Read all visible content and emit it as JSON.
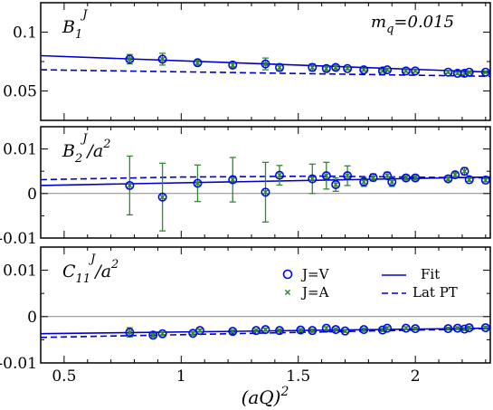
{
  "chart_data": {
    "type": "scatter",
    "xlabel": "(aQ)",
    "xlabel_sup": "2",
    "xlim": [
      0.4,
      2.32
    ],
    "x_ticks": [
      "0.5",
      "1",
      "1.5",
      "2"
    ],
    "x_tick_values": [
      0.5,
      1,
      1.5,
      2
    ],
    "colors": {
      "jv": "#0000ff",
      "ja": "#2e8b2e",
      "fit": "#0000cc",
      "zero": "#888888"
    },
    "legend": {
      "placement": "center-right of bottom panel",
      "entries": [
        {
          "label": "J=V",
          "marker": "circle"
        },
        {
          "label": "J=A",
          "marker": "x"
        },
        {
          "label": "Fit",
          "line": "solid"
        },
        {
          "label": "Lat PT",
          "line": "dashed"
        }
      ]
    },
    "panels": [
      {
        "id": "B1",
        "label": "B",
        "label_sub": "1",
        "label_sup": "J",
        "label_suffix": "",
        "annotation": "m",
        "annotation_sub": "q",
        "annotation_suffix": "=0.015",
        "ylim": [
          0.025,
          0.125
        ],
        "y_ticks": [
          "0.05",
          "0.1"
        ],
        "y_tick_values": [
          0.05,
          0.1
        ],
        "zero_line": false,
        "fit": [
          [
            0.4,
            0.08
          ],
          [
            2.32,
            0.066
          ]
        ],
        "latpt": [
          [
            0.4,
            0.068
          ],
          [
            2.32,
            0.0625
          ]
        ],
        "points": [
          {
            "x": 0.78,
            "y": 0.077,
            "err": 0.004
          },
          {
            "x": 0.92,
            "y": 0.077,
            "err": 0.005
          },
          {
            "x": 1.07,
            "y": 0.074,
            "err": 0.002
          },
          {
            "x": 1.22,
            "y": 0.072,
            "err": 0.002
          },
          {
            "x": 1.36,
            "y": 0.073,
            "err": 0.005
          },
          {
            "x": 1.42,
            "y": 0.07,
            "err": 0.003
          },
          {
            "x": 1.56,
            "y": 0.07,
            "err": 0.003
          },
          {
            "x": 1.62,
            "y": 0.069,
            "err": 0.002
          },
          {
            "x": 1.66,
            "y": 0.07,
            "err": 0.002
          },
          {
            "x": 1.71,
            "y": 0.069,
            "err": 0.001
          },
          {
            "x": 1.78,
            "y": 0.068,
            "err": 0.001
          },
          {
            "x": 1.86,
            "y": 0.067,
            "err": 0.001
          },
          {
            "x": 1.88,
            "y": 0.068,
            "err": 0.001
          },
          {
            "x": 1.96,
            "y": 0.067,
            "err": 0.001
          },
          {
            "x": 2.0,
            "y": 0.067,
            "err": 0.001
          },
          {
            "x": 2.14,
            "y": 0.066,
            "err": 0.001
          },
          {
            "x": 2.18,
            "y": 0.065,
            "err": 0.001
          },
          {
            "x": 2.21,
            "y": 0.065,
            "err": 0.001
          },
          {
            "x": 2.23,
            "y": 0.066,
            "err": 0.001
          },
          {
            "x": 2.3,
            "y": 0.066,
            "err": 0.001
          }
        ]
      },
      {
        "id": "B2",
        "label": "B",
        "label_sub": "2",
        "label_sup": "J",
        "label_suffix": "/a",
        "label_suffix_sup": "2",
        "ylim": [
          -0.01,
          0.015
        ],
        "y_ticks": [
          "-0.01",
          "0",
          "0.01"
        ],
        "y_tick_values": [
          -0.01,
          0,
          0.01
        ],
        "zero_line": true,
        "fit": [
          [
            0.4,
            0.0018
          ],
          [
            2.32,
            0.0037
          ]
        ],
        "latpt": [
          [
            0.4,
            0.0031
          ],
          [
            1.0,
            0.0037
          ],
          [
            1.6,
            0.0039
          ],
          [
            2.32,
            0.0035
          ]
        ],
        "points": [
          {
            "x": 0.78,
            "y": 0.0018,
            "err": 0.0066
          },
          {
            "x": 0.92,
            "y": -0.0008,
            "err": 0.0076
          },
          {
            "x": 1.07,
            "y": 0.0023,
            "err": 0.0041
          },
          {
            "x": 1.22,
            "y": 0.0031,
            "err": 0.005
          },
          {
            "x": 1.36,
            "y": 0.0003,
            "err": 0.0067
          },
          {
            "x": 1.42,
            "y": 0.0041,
            "err": 0.0022
          },
          {
            "x": 1.56,
            "y": 0.0033,
            "err": 0.0033
          },
          {
            "x": 1.62,
            "y": 0.004,
            "err": 0.003
          },
          {
            "x": 1.66,
            "y": 0.002,
            "err": 0.0015
          },
          {
            "x": 1.71,
            "y": 0.004,
            "err": 0.0022
          },
          {
            "x": 1.78,
            "y": 0.0026,
            "err": 0.001
          },
          {
            "x": 1.82,
            "y": 0.0036,
            "err": 0.0008
          },
          {
            "x": 1.88,
            "y": 0.004,
            "err": 0.0008
          },
          {
            "x": 1.9,
            "y": 0.0026,
            "err": 0.001
          },
          {
            "x": 1.96,
            "y": 0.0035,
            "err": 0.0005
          },
          {
            "x": 2.0,
            "y": 0.0035,
            "err": 0.0005
          },
          {
            "x": 2.14,
            "y": 0.0033,
            "err": 0.0005
          },
          {
            "x": 2.17,
            "y": 0.0042,
            "err": 0.0006
          },
          {
            "x": 2.21,
            "y": 0.005,
            "err": 0.0008
          },
          {
            "x": 2.23,
            "y": 0.0031,
            "err": 0.0004
          },
          {
            "x": 2.3,
            "y": 0.003,
            "err": 0.0004
          }
        ]
      },
      {
        "id": "C11",
        "label": "C",
        "label_sub": "11",
        "label_sup": "J",
        "label_suffix": "/a",
        "label_suffix_sup": "2",
        "ylim": [
          -0.01,
          0.015
        ],
        "y_ticks": [
          "-0.01",
          "0",
          "0.01"
        ],
        "y_tick_values": [
          -0.01,
          0,
          0.01
        ],
        "zero_line": true,
        "fit": [
          [
            0.4,
            -0.0037
          ],
          [
            2.32,
            -0.0025
          ]
        ],
        "latpt": [
          [
            0.4,
            -0.0045
          ],
          [
            2.32,
            -0.0026
          ]
        ],
        "points": [
          {
            "x": 0.78,
            "y": -0.0034,
            "err": 0.001
          },
          {
            "x": 0.88,
            "y": -0.004,
            "err": 0.0004
          },
          {
            "x": 0.92,
            "y": -0.0037,
            "err": 0.0004
          },
          {
            "x": 1.05,
            "y": -0.0036,
            "err": 0.0004
          },
          {
            "x": 1.08,
            "y": -0.003,
            "err": 0.0003
          },
          {
            "x": 1.22,
            "y": -0.0032,
            "err": 0.0003
          },
          {
            "x": 1.32,
            "y": -0.003,
            "err": 0.0003
          },
          {
            "x": 1.36,
            "y": -0.0028,
            "err": 0.0003
          },
          {
            "x": 1.42,
            "y": -0.003,
            "err": 0.0003
          },
          {
            "x": 1.51,
            "y": -0.0029,
            "err": 0.0003
          },
          {
            "x": 1.56,
            "y": -0.003,
            "err": 0.0003
          },
          {
            "x": 1.62,
            "y": -0.0025,
            "err": 0.0003
          },
          {
            "x": 1.66,
            "y": -0.0028,
            "err": 0.0003
          },
          {
            "x": 1.7,
            "y": -0.0031,
            "err": 0.0003
          },
          {
            "x": 1.78,
            "y": -0.0028,
            "err": 0.0003
          },
          {
            "x": 1.86,
            "y": -0.0029,
            "err": 0.0003
          },
          {
            "x": 1.88,
            "y": -0.0025,
            "err": 0.0003
          },
          {
            "x": 1.96,
            "y": -0.0025,
            "err": 0.0003
          },
          {
            "x": 2.0,
            "y": -0.0026,
            "err": 0.0003
          },
          {
            "x": 2.14,
            "y": -0.0026,
            "err": 0.0003
          },
          {
            "x": 2.18,
            "y": -0.0025,
            "err": 0.0003
          },
          {
            "x": 2.21,
            "y": -0.0027,
            "err": 0.0003
          },
          {
            "x": 2.23,
            "y": -0.0024,
            "err": 0.0003
          },
          {
            "x": 2.3,
            "y": -0.0024,
            "err": 0.0003
          }
        ]
      }
    ]
  }
}
